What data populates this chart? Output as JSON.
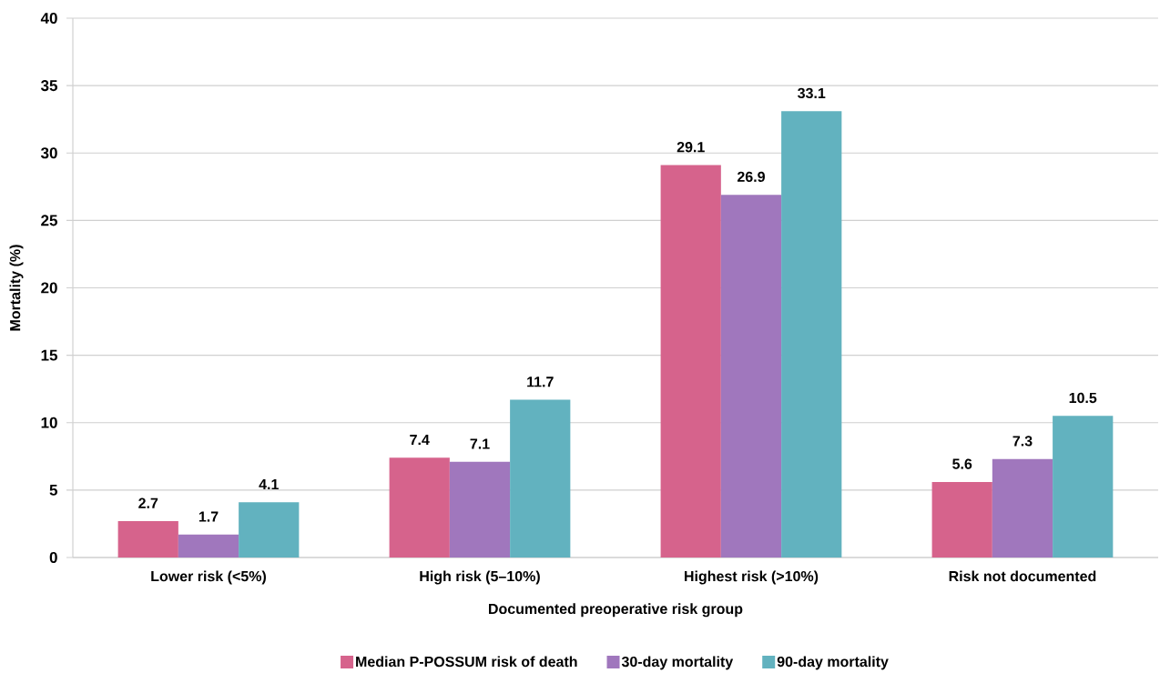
{
  "chart_data": {
    "type": "bar",
    "xlabel": "Documented preoperative risk group",
    "ylabel": "Mortality (%)",
    "categories": [
      "Lower risk (<5%)",
      "High risk (5–10%)",
      "Highest risk (>10%)",
      "Risk not documented"
    ],
    "series": [
      {
        "name": "Median P-POSSUM risk of death",
        "color": "#d6638c",
        "values": [
          2.7,
          7.4,
          29.1,
          5.6
        ]
      },
      {
        "name": "30-day mortality",
        "color": "#a077bd",
        "values": [
          1.7,
          7.1,
          26.9,
          7.3
        ]
      },
      {
        "name": "90-day mortality",
        "color": "#62b2bf",
        "values": [
          4.1,
          11.7,
          33.1,
          10.5
        ]
      }
    ],
    "ylim": [
      0,
      40
    ],
    "yticks": [
      0,
      5,
      10,
      15,
      20,
      25,
      30,
      35,
      40
    ],
    "grid": "y",
    "legend": "bottom",
    "data_labels": true
  }
}
